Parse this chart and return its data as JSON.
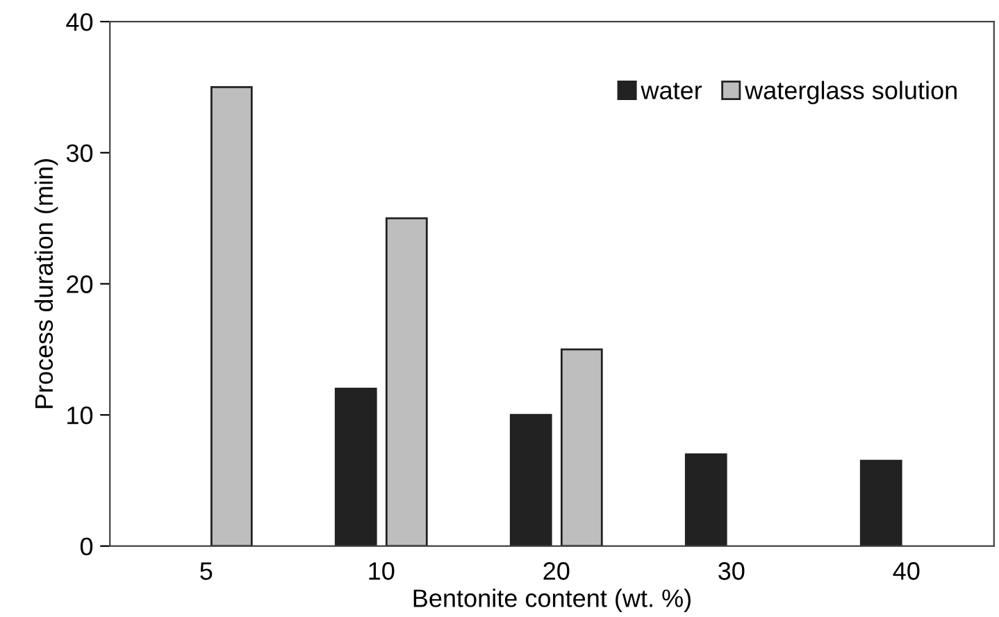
{
  "chart_data": {
    "type": "bar",
    "xlabel": "Bentonite content (wt. %)",
    "ylabel": "Process duration (min)",
    "categories": [
      "5",
      "10",
      "20",
      "30",
      "40"
    ],
    "series": [
      {
        "name": "water",
        "color": "#222222",
        "values": [
          null,
          12,
          10,
          7,
          6.5
        ]
      },
      {
        "name": "waterglass solution",
        "color": "#bebebe",
        "values": [
          35,
          25,
          15,
          null,
          null
        ]
      }
    ],
    "ylim": [
      0,
      40
    ],
    "yticks": [
      0,
      10,
      20,
      30,
      40
    ],
    "grid": false,
    "legend": "top right"
  }
}
